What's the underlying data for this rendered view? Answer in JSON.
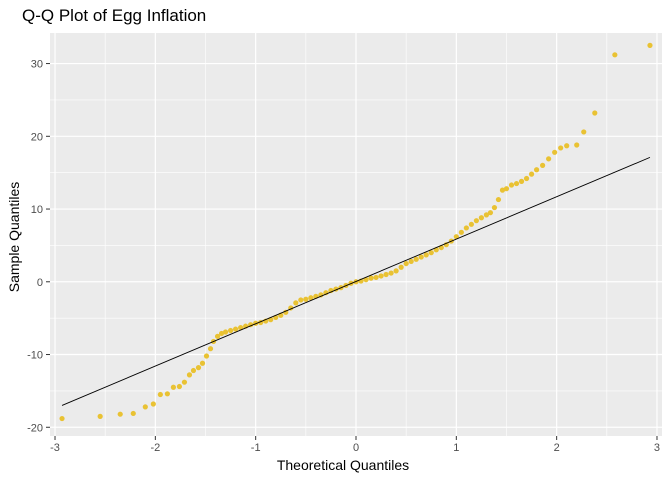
{
  "chart_data": {
    "type": "scatter",
    "title": "Q-Q Plot of Egg Inflation",
    "xlabel": "Theoretical Quantiles",
    "ylabel": "Sample Quantiles",
    "xlim": [
      -3.05,
      3.05
    ],
    "ylim": [
      -21.2,
      34.2
    ],
    "x_ticks": [
      -3,
      -2,
      -1,
      0,
      1,
      2,
      3
    ],
    "y_ticks": [
      -20,
      -10,
      0,
      10,
      20,
      30
    ],
    "grid": true,
    "panel_background": "#ebebeb",
    "grid_color": "#ffffff",
    "point_color": "#e9c233",
    "reference_line": {
      "x": [
        -2.93,
        2.93
      ],
      "y": [
        -17.0,
        17.1
      ],
      "color": "#000000"
    },
    "points": [
      [
        -2.93,
        -18.8
      ],
      [
        -2.55,
        -18.5
      ],
      [
        -2.35,
        -18.2
      ],
      [
        -2.22,
        -18.1
      ],
      [
        -2.1,
        -17.2
      ],
      [
        -2.02,
        -16.8
      ],
      [
        -1.95,
        -15.5
      ],
      [
        -1.88,
        -15.4
      ],
      [
        -1.82,
        -14.5
      ],
      [
        -1.76,
        -14.4
      ],
      [
        -1.71,
        -13.8
      ],
      [
        -1.66,
        -12.8
      ],
      [
        -1.62,
        -12.2
      ],
      [
        -1.57,
        -11.8
      ],
      [
        -1.53,
        -11.2
      ],
      [
        -1.49,
        -10.2
      ],
      [
        -1.45,
        -9.2
      ],
      [
        -1.42,
        -8.2
      ],
      [
        -1.38,
        -7.5
      ],
      [
        -1.34,
        -7.1
      ],
      [
        -1.3,
        -6.9
      ],
      [
        -1.25,
        -6.7
      ],
      [
        -1.2,
        -6.5
      ],
      [
        -1.15,
        -6.3
      ],
      [
        -1.1,
        -6.1
      ],
      [
        -1.05,
        -5.9
      ],
      [
        -1.0,
        -5.7
      ],
      [
        -0.95,
        -5.6
      ],
      [
        -0.9,
        -5.4
      ],
      [
        -0.85,
        -5.2
      ],
      [
        -0.8,
        -4.9
      ],
      [
        -0.75,
        -4.6
      ],
      [
        -0.7,
        -4.2
      ],
      [
        -0.65,
        -3.6
      ],
      [
        -0.6,
        -2.9
      ],
      [
        -0.55,
        -2.5
      ],
      [
        -0.5,
        -2.4
      ],
      [
        -0.45,
        -2.2
      ],
      [
        -0.4,
        -2.0
      ],
      [
        -0.35,
        -1.8
      ],
      [
        -0.3,
        -1.5
      ],
      [
        -0.25,
        -1.2
      ],
      [
        -0.2,
        -1.0
      ],
      [
        -0.15,
        -0.8
      ],
      [
        -0.1,
        -0.5
      ],
      [
        -0.05,
        -0.2
      ],
      [
        0.0,
        0.0
      ],
      [
        0.05,
        0.1
      ],
      [
        0.1,
        0.3
      ],
      [
        0.15,
        0.5
      ],
      [
        0.2,
        0.6
      ],
      [
        0.25,
        0.8
      ],
      [
        0.3,
        1.0
      ],
      [
        0.35,
        1.2
      ],
      [
        0.4,
        1.5
      ],
      [
        0.45,
        2.0
      ],
      [
        0.5,
        2.5
      ],
      [
        0.55,
        2.8
      ],
      [
        0.6,
        3.1
      ],
      [
        0.65,
        3.4
      ],
      [
        0.7,
        3.7
      ],
      [
        0.75,
        4.0
      ],
      [
        0.8,
        4.4
      ],
      [
        0.85,
        4.7
      ],
      [
        0.9,
        5.1
      ],
      [
        0.95,
        5.6
      ],
      [
        1.0,
        6.2
      ],
      [
        1.05,
        6.8
      ],
      [
        1.1,
        7.4
      ],
      [
        1.15,
        7.9
      ],
      [
        1.2,
        8.4
      ],
      [
        1.25,
        8.8
      ],
      [
        1.3,
        9.2
      ],
      [
        1.34,
        9.5
      ],
      [
        1.38,
        10.2
      ],
      [
        1.42,
        11.3
      ],
      [
        1.46,
        12.6
      ],
      [
        1.5,
        12.8
      ],
      [
        1.55,
        13.3
      ],
      [
        1.6,
        13.5
      ],
      [
        1.65,
        13.8
      ],
      [
        1.7,
        14.2
      ],
      [
        1.75,
        14.8
      ],
      [
        1.8,
        15.4
      ],
      [
        1.86,
        16.0
      ],
      [
        1.92,
        16.9
      ],
      [
        1.98,
        17.8
      ],
      [
        2.04,
        18.4
      ],
      [
        2.1,
        18.7
      ],
      [
        2.2,
        18.8
      ],
      [
        2.27,
        20.6
      ],
      [
        2.38,
        23.2
      ],
      [
        2.58,
        31.2
      ],
      [
        2.93,
        32.5
      ]
    ]
  }
}
